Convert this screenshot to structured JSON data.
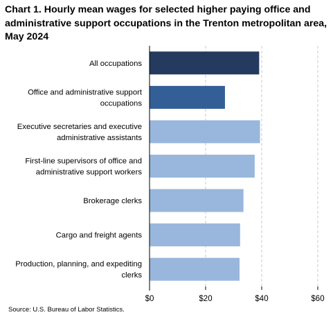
{
  "chart_data": {
    "type": "bar",
    "orientation": "horizontal",
    "title": "Chart 1. Hourly mean wages for selected higher paying office and administrative support occupations in the Trenton metropolitan area, May 2024",
    "categories": [
      [
        "All occupations"
      ],
      [
        "Office and administrative support",
        "occupations"
      ],
      [
        "Executive secretaries and executive",
        "administrative assistants"
      ],
      [
        "First-line supervisors of office and",
        "administrative support workers"
      ],
      [
        "Brokerage clerks"
      ],
      [
        "Cargo and freight agents"
      ],
      [
        "Production, planning, and expediting",
        "clerks"
      ]
    ],
    "values": [
      39.1,
      26.9,
      39.4,
      37.5,
      33.5,
      32.3,
      32.1
    ],
    "bar_colors": [
      "#243a5e",
      "#335f96",
      "#99b7dc",
      "#99b7dc",
      "#99b7dc",
      "#99b7dc",
      "#99b7dc"
    ],
    "xlim": [
      0,
      60
    ],
    "x_ticks": [
      0,
      20,
      40,
      60
    ],
    "x_tick_labels": [
      "$0",
      "$20",
      "$40",
      "$60"
    ],
    "grid": "vertical dashed",
    "xlabel": "",
    "ylabel": ""
  },
  "source": "Source: U.S. Bureau of Labor Statistics."
}
